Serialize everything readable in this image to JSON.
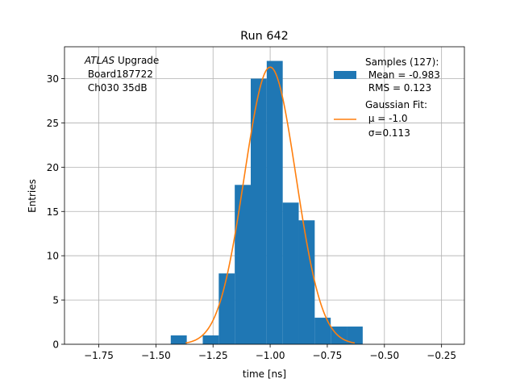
{
  "chart_data": {
    "type": "histogram",
    "title": "Run 642",
    "xlabel": "time [ns]",
    "ylabel": "Entries",
    "xlim": [
      -1.9,
      -0.15
    ],
    "ylim": [
      0,
      33.6
    ],
    "x_ticks": [
      -1.75,
      -1.5,
      -1.25,
      -1.0,
      -0.75,
      -0.5,
      -0.25
    ],
    "x_tick_labels": [
      "−1.75",
      "−1.50",
      "−1.25",
      "−1.00",
      "−0.75",
      "−0.50",
      "−0.25"
    ],
    "y_ticks": [
      0,
      5,
      10,
      15,
      20,
      25,
      30
    ],
    "y_tick_labels": [
      "0",
      "5",
      "10",
      "15",
      "20",
      "25",
      "30"
    ],
    "grid": true,
    "annotation": {
      "line1_italic": "ATLAS",
      "line1_rest": " Upgrade",
      "line2": " Board187722",
      "line3": " Ch030 35dB"
    },
    "histogram": {
      "color": "#1f77b4",
      "bins": [
        {
          "x0": -1.435,
          "x1": -1.365,
          "count": 1
        },
        {
          "x0": -1.295,
          "x1": -1.225,
          "count": 1
        },
        {
          "x0": -1.225,
          "x1": -1.155,
          "count": 8
        },
        {
          "x0": -1.155,
          "x1": -1.085,
          "count": 18
        },
        {
          "x0": -1.085,
          "x1": -1.015,
          "count": 30
        },
        {
          "x0": -1.015,
          "x1": -0.945,
          "count": 32
        },
        {
          "x0": -0.945,
          "x1": -0.875,
          "count": 16
        },
        {
          "x0": -0.875,
          "x1": -0.805,
          "count": 14
        },
        {
          "x0": -0.805,
          "x1": -0.735,
          "count": 3
        },
        {
          "x0": -0.735,
          "x1": -0.665,
          "count": 2
        },
        {
          "x0": -0.665,
          "x1": -0.595,
          "count": 2
        }
      ]
    },
    "fit": {
      "color": "#ff7f0e",
      "mu": -1.0,
      "sigma": 0.113,
      "amplitude": 31.3,
      "x_range": [
        -1.37,
        -0.63
      ]
    },
    "legend": {
      "placement": "top-right",
      "entries": [
        {
          "kind": "patch",
          "lines": [
            "Samples (127):",
            " Mean = -0.983",
            " RMS = 0.123"
          ]
        },
        {
          "kind": "line",
          "lines": [
            "Gaussian Fit:",
            " μ = -1.0",
            " σ=0.113"
          ]
        }
      ]
    }
  }
}
